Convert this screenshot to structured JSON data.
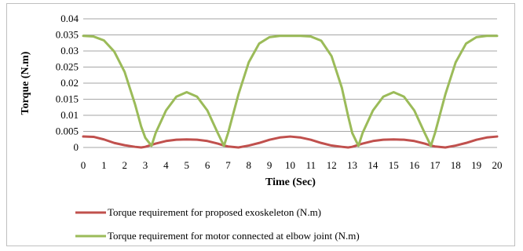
{
  "chart_data": {
    "type": "line",
    "title": "",
    "xlabel": "Time (Sec)",
    "ylabel": "Torque (N.m)",
    "xlim": [
      0,
      20
    ],
    "ylim": [
      0,
      0.04
    ],
    "x_ticks": [
      "0",
      "1",
      "2",
      "3",
      "4",
      "5",
      "6",
      "7",
      "8",
      "9",
      "10",
      "11",
      "12",
      "13",
      "14",
      "15",
      "16",
      "17",
      "18",
      "19",
      "20"
    ],
    "y_ticks": [
      "0",
      "0.005",
      "0.01",
      "0.015",
      "0.02",
      "0.025",
      "0.03",
      "0.035",
      "0.04"
    ],
    "grid": "horizontal",
    "legend_position": "bottom",
    "x": [
      0,
      0.5,
      1,
      1.5,
      2,
      2.5,
      2.8,
      3,
      3.3,
      3.5,
      4,
      4.5,
      5,
      5.5,
      6,
      6.5,
      6.8,
      7,
      7.5,
      8,
      8.5,
      9,
      9.5,
      10,
      10.5,
      11,
      11.5,
      12,
      12.5,
      12.8,
      13,
      13.3,
      13.5,
      14,
      14.5,
      15,
      15.5,
      16,
      16.5,
      16.8,
      17,
      17.5,
      18,
      18.5,
      19,
      19.5,
      20
    ],
    "series": [
      {
        "name": "Torque requirement for proposed exoskeleton (N.m)",
        "color": "#c0504d",
        "values": [
          0.0034,
          0.0033,
          0.0025,
          0.0014,
          0.0007,
          0.0002,
          0,
          0.0002,
          0.0008,
          0.0012,
          0.002,
          0.0024,
          0.0025,
          0.0024,
          0.002,
          0.0012,
          0.0006,
          0.0003,
          0,
          0.0006,
          0.0014,
          0.0024,
          0.0031,
          0.0034,
          0.0031,
          0.0024,
          0.0014,
          0.0006,
          0.0002,
          0,
          0.0002,
          0.0008,
          0.0012,
          0.002,
          0.0024,
          0.0025,
          0.0024,
          0.002,
          0.0012,
          0.0006,
          0.0003,
          0,
          0.0006,
          0.0014,
          0.0024,
          0.0031,
          0.0034
        ]
      },
      {
        "name": "Torque requirement for motor connected at elbow joint (N.m)",
        "color": "#9bbb59",
        "values": [
          0.0347,
          0.0345,
          0.0333,
          0.0298,
          0.0235,
          0.0135,
          0.0065,
          0.003,
          0.0005,
          0.0045,
          0.0115,
          0.0158,
          0.0172,
          0.0158,
          0.0115,
          0.0045,
          0.0005,
          0.0045,
          0.0165,
          0.0265,
          0.0323,
          0.0343,
          0.0347,
          0.0347,
          0.0347,
          0.0345,
          0.0332,
          0.0284,
          0.0185,
          0.0098,
          0.0045,
          0.0005,
          0.0045,
          0.0115,
          0.0158,
          0.0172,
          0.0158,
          0.0115,
          0.0045,
          0.0005,
          0.0045,
          0.0165,
          0.0265,
          0.0323,
          0.0343,
          0.0347,
          0.0347
        ]
      }
    ]
  }
}
